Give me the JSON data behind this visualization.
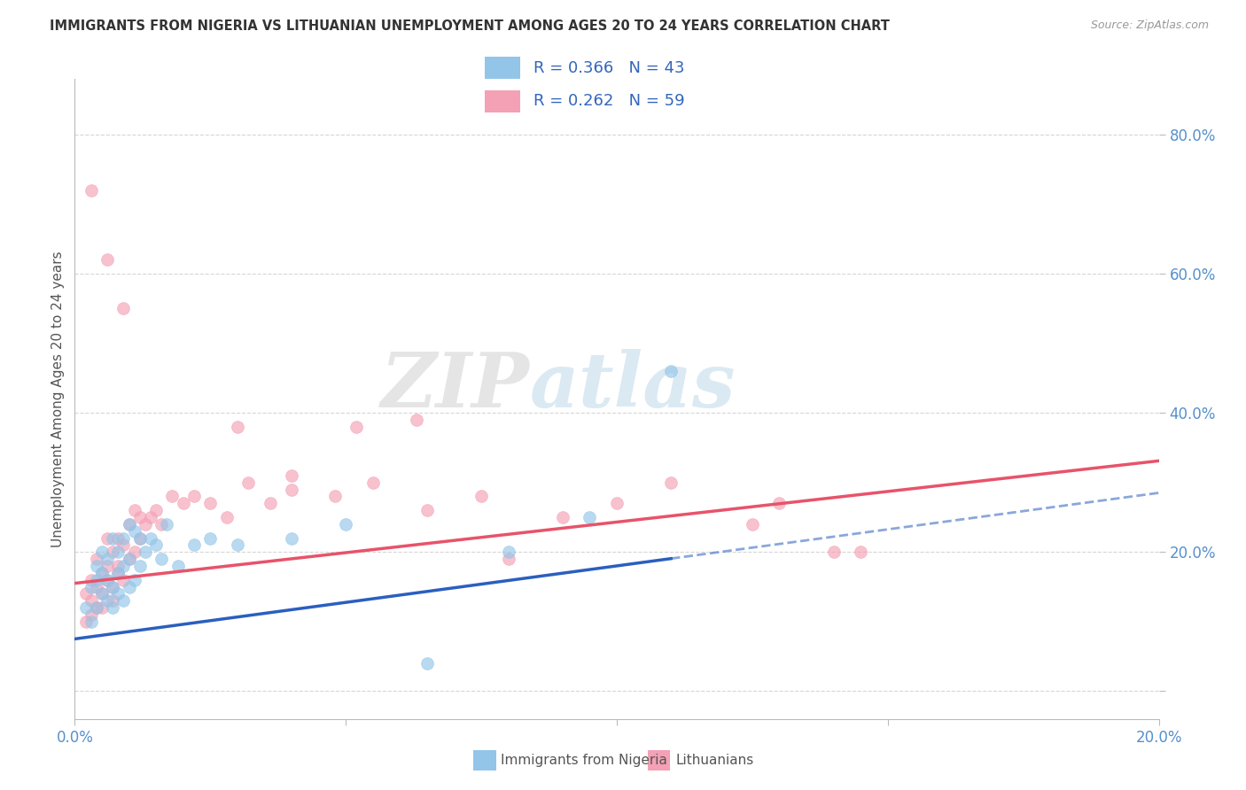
{
  "title": "IMMIGRANTS FROM NIGERIA VS LITHUANIAN UNEMPLOYMENT AMONG AGES 20 TO 24 YEARS CORRELATION CHART",
  "source": "Source: ZipAtlas.com",
  "ylabel": "Unemployment Among Ages 20 to 24 years",
  "y_ticks": [
    0.0,
    0.2,
    0.4,
    0.6,
    0.8
  ],
  "y_tick_labels": [
    "",
    "20.0%",
    "40.0%",
    "60.0%",
    "80.0%"
  ],
  "x_range": [
    0.0,
    0.2
  ],
  "y_range": [
    -0.04,
    0.88
  ],
  "nigeria_R": "0.366",
  "nigeria_N": "43",
  "lithuanian_R": "0.262",
  "lithuanian_N": "59",
  "nigeria_color": "#92C5E8",
  "lithuanian_color": "#F4A0B5",
  "nigeria_line_color": "#2B5FBF",
  "lithuanian_line_color": "#E8536A",
  "watermark_zip": "ZIP",
  "watermark_atlas": "atlas",
  "legend_entries": [
    {
      "label": "Immigrants from Nigeria",
      "color": "#92C5E8"
    },
    {
      "label": "Lithuanians",
      "color": "#F4A0B5"
    }
  ],
  "nigeria_line_intercept": 0.075,
  "nigeria_line_slope": 1.05,
  "lithuanian_line_intercept": 0.155,
  "lithuanian_line_slope": 0.88,
  "nigeria_x": [
    0.002,
    0.003,
    0.003,
    0.004,
    0.004,
    0.004,
    0.005,
    0.005,
    0.005,
    0.006,
    0.006,
    0.006,
    0.007,
    0.007,
    0.007,
    0.008,
    0.008,
    0.008,
    0.009,
    0.009,
    0.009,
    0.01,
    0.01,
    0.01,
    0.011,
    0.011,
    0.012,
    0.012,
    0.013,
    0.014,
    0.015,
    0.016,
    0.017,
    0.019,
    0.022,
    0.025,
    0.03,
    0.04,
    0.05,
    0.065,
    0.08,
    0.095,
    0.11
  ],
  "nigeria_y": [
    0.12,
    0.1,
    0.15,
    0.12,
    0.16,
    0.18,
    0.14,
    0.17,
    0.2,
    0.13,
    0.16,
    0.19,
    0.12,
    0.15,
    0.22,
    0.14,
    0.17,
    0.2,
    0.13,
    0.18,
    0.22,
    0.15,
    0.19,
    0.24,
    0.16,
    0.23,
    0.18,
    0.22,
    0.2,
    0.22,
    0.21,
    0.19,
    0.24,
    0.18,
    0.21,
    0.22,
    0.21,
    0.22,
    0.24,
    0.04,
    0.2,
    0.25,
    0.46
  ],
  "lithuanian_x": [
    0.002,
    0.002,
    0.003,
    0.003,
    0.003,
    0.004,
    0.004,
    0.004,
    0.005,
    0.005,
    0.005,
    0.006,
    0.006,
    0.006,
    0.007,
    0.007,
    0.007,
    0.008,
    0.008,
    0.008,
    0.009,
    0.009,
    0.01,
    0.01,
    0.011,
    0.011,
    0.012,
    0.012,
    0.013,
    0.014,
    0.015,
    0.016,
    0.018,
    0.02,
    0.022,
    0.025,
    0.028,
    0.032,
    0.036,
    0.04,
    0.048,
    0.055,
    0.065,
    0.075,
    0.08,
    0.09,
    0.1,
    0.11,
    0.125,
    0.14,
    0.003,
    0.006,
    0.009,
    0.03,
    0.04,
    0.052,
    0.063,
    0.13,
    0.145
  ],
  "lithuanian_y": [
    0.1,
    0.14,
    0.11,
    0.16,
    0.13,
    0.12,
    0.15,
    0.19,
    0.14,
    0.17,
    0.12,
    0.16,
    0.18,
    0.22,
    0.15,
    0.2,
    0.13,
    0.17,
    0.22,
    0.18,
    0.16,
    0.21,
    0.19,
    0.24,
    0.2,
    0.26,
    0.22,
    0.25,
    0.24,
    0.25,
    0.26,
    0.24,
    0.28,
    0.27,
    0.28,
    0.27,
    0.25,
    0.3,
    0.27,
    0.29,
    0.28,
    0.3,
    0.26,
    0.28,
    0.19,
    0.25,
    0.27,
    0.3,
    0.24,
    0.2,
    0.72,
    0.62,
    0.55,
    0.38,
    0.31,
    0.38,
    0.39,
    0.27,
    0.2
  ]
}
